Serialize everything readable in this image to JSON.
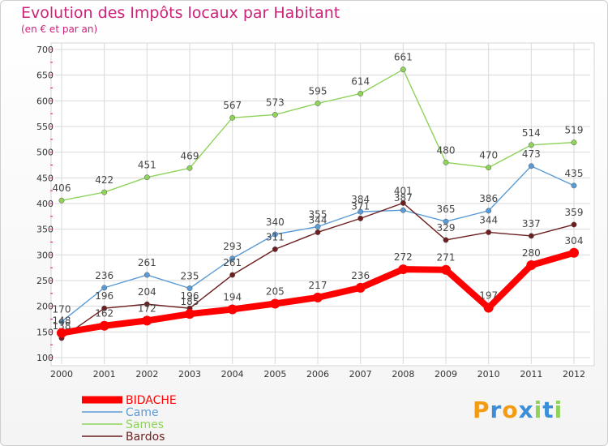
{
  "chart_data": {
    "type": "line",
    "title": "Evolution des Impôts locaux par Habitant",
    "subtitle": "(en € et par an)",
    "xlabel": "",
    "ylabel": "",
    "categories": [
      "2000",
      "2001",
      "2002",
      "2003",
      "2004",
      "2005",
      "2006",
      "2007",
      "2008",
      "2009",
      "2010",
      "2011",
      "2012"
    ],
    "ylim": [
      100,
      700
    ],
    "yticks": [
      100,
      150,
      200,
      250,
      300,
      350,
      400,
      450,
      500,
      550,
      600,
      650,
      700
    ],
    "grid": true,
    "legend_position": "bottom-left",
    "series": [
      {
        "name": "Sames",
        "color": "#8fd35b",
        "values": [
          406,
          422,
          451,
          469,
          567,
          573,
          595,
          614,
          661,
          480,
          470,
          514,
          519
        ]
      },
      {
        "name": "Came",
        "color": "#5b9bd5",
        "values": [
          170,
          236,
          261,
          235,
          293,
          340,
          355,
          384,
          387,
          365,
          386,
          473,
          435
        ]
      },
      {
        "name": "Bardos",
        "color": "#6d1f1f",
        "values": [
          138,
          196,
          204,
          196,
          261,
          311,
          344,
          371,
          401,
          329,
          344,
          337,
          359
        ]
      },
      {
        "name": "BIDACHE",
        "color": "#ff0000",
        "values": [
          148,
          162,
          172,
          185,
          194,
          205,
          217,
          236,
          272,
          271,
          197,
          280,
          304
        ]
      }
    ]
  },
  "legend": {
    "items": [
      {
        "name": "BIDACHE",
        "color": "#ff0000"
      },
      {
        "name": "Came",
        "color": "#5b9bd5"
      },
      {
        "name": "Sames",
        "color": "#8fd35b"
      },
      {
        "name": "Bardos",
        "color": "#6d1f1f"
      }
    ]
  },
  "brand": {
    "letters": [
      "P",
      "r",
      "o",
      "x",
      "i",
      "t",
      "i"
    ],
    "colors": [
      "#f39c12",
      "#3a8fd8",
      "#f39c12",
      "#3a8fd8",
      "#8fd35b",
      "#3a8fd8",
      "#8fd35b"
    ]
  }
}
